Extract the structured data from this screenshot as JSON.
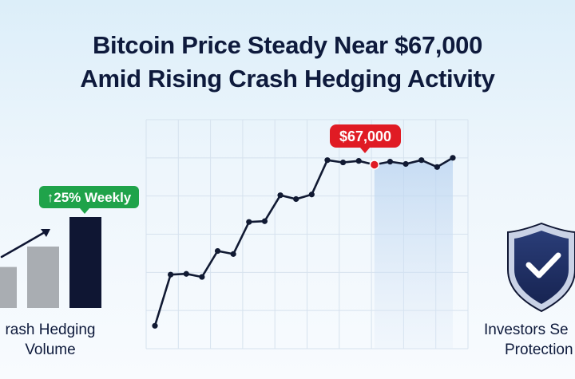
{
  "headline": {
    "line1": "Bitcoin Price Steady Near $67,000",
    "line2": "Amid Rising Crash Hedging Activity"
  },
  "price_callout": "$67,000",
  "hedging": {
    "badge": "↑25% Weekly",
    "label_line1": "rash Hedging",
    "label_line2": "Volume"
  },
  "investors": {
    "label_line1": "Investors Se",
    "label_line2": "Protection"
  },
  "colors": {
    "line": "#111a33",
    "callout": "#e01b24",
    "badge": "#1fa34a",
    "bar_dark": "#0f1633",
    "bar_grey": "#a9adb2",
    "shield": "#0f1633"
  },
  "icons": [
    "trend-arrow-icon",
    "shield-check-icon"
  ],
  "chart_data": [
    {
      "type": "line",
      "title": "",
      "xlabel": "",
      "ylabel": "",
      "x": [
        1,
        2,
        3,
        4,
        5,
        6,
        7,
        8,
        9,
        10,
        11,
        12,
        13,
        14,
        15,
        16,
        17,
        18,
        19,
        20
      ],
      "values": [
        3.0,
        9.7,
        9.8,
        9.4,
        12.8,
        12.4,
        16.6,
        16.7,
        20.1,
        19.6,
        20.2,
        24.7,
        24.4,
        24.6,
        24.1,
        24.5,
        24.2,
        24.7,
        23.8,
        25.0
      ],
      "ylim": [
        0,
        30
      ],
      "highlight_index": 14,
      "highlight_label": "$67,000",
      "grid": true
    },
    {
      "type": "bar",
      "categories": [
        "1",
        "2",
        "3"
      ],
      "values": [
        50,
        75,
        111
      ],
      "ylim": [
        0,
        111
      ],
      "annotation": "↑25% Weekly"
    }
  ]
}
